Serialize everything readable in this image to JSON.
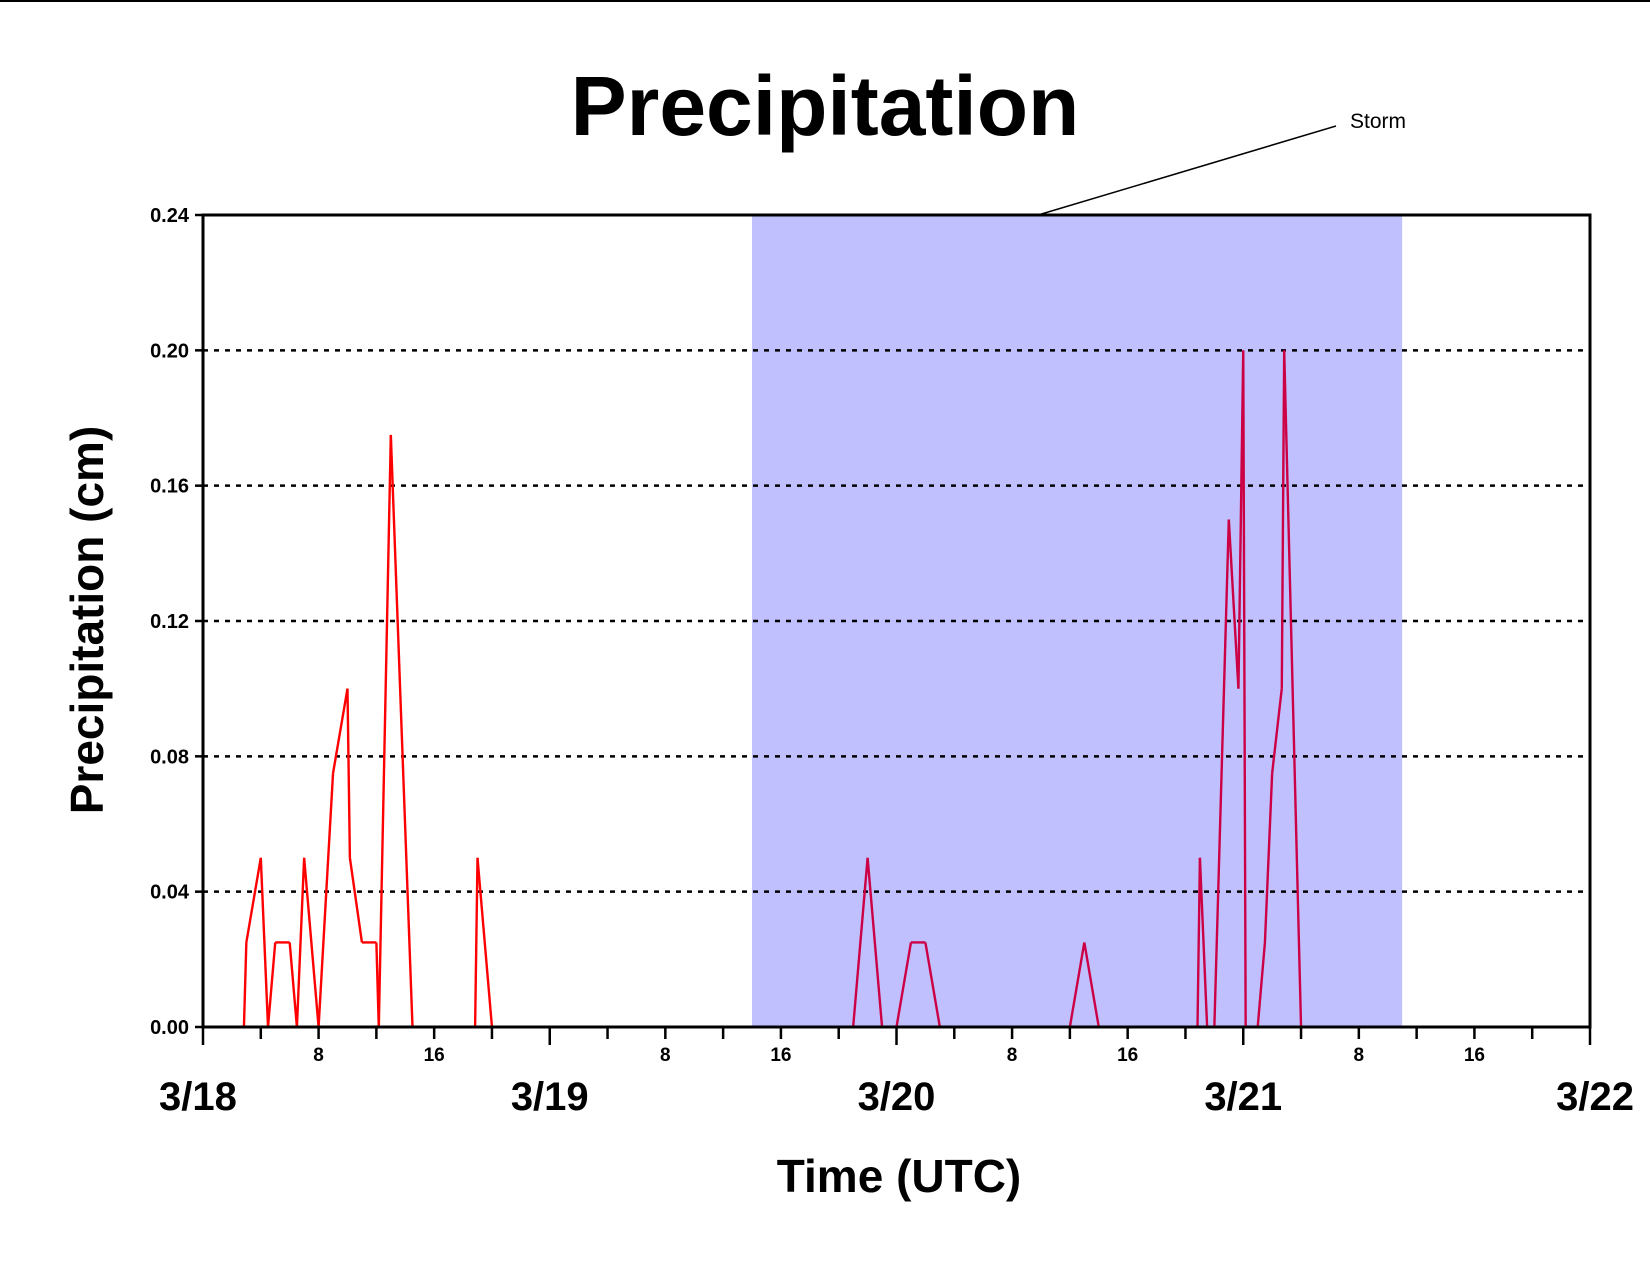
{
  "chart_data": {
    "type": "line",
    "title": "Precipitation",
    "xlabel": "Time (UTC)",
    "ylabel": "Precipitation (cm)",
    "ylim": [
      0,
      0.24
    ],
    "yticks": [
      "0.00",
      "0.04",
      "0.08",
      "0.12",
      "0.16",
      "0.20",
      "0.24"
    ],
    "xlim": [
      "3/18 00:00",
      "3/22 00:00"
    ],
    "day_labels": [
      "3/18",
      "3/19",
      "3/20",
      "3/21",
      "3/22"
    ],
    "hour_labels": [
      "8",
      "16"
    ],
    "grid": "horizontal dotted",
    "colors": {
      "series": "#ff0000",
      "series_in_storm": "#cc0044",
      "storm_band": "#c0c0ff",
      "grid": "#000000"
    },
    "annotation": {
      "text": "Storm",
      "span_start": "3/19 14:00",
      "span_end": "3/21 11:00"
    },
    "series": [
      {
        "points": [
          [
            "3/18 00:00",
            0
          ],
          [
            "3/18 02:50",
            0
          ],
          [
            "3/18 03:00",
            0.025
          ],
          [
            "3/18 04:00",
            0.05
          ],
          [
            "3/18 04:30",
            0
          ],
          [
            "3/18 05:00",
            0.025
          ],
          [
            "3/18 06:00",
            0.025
          ],
          [
            "3/18 06:30",
            0
          ],
          [
            "3/18 07:00",
            0.05
          ],
          [
            "3/18 08:00",
            0
          ],
          [
            "3/18 09:00",
            0.075
          ],
          [
            "3/18 10:00",
            0.1
          ],
          [
            "3/18 10:10",
            0.05
          ],
          [
            "3/18 11:00",
            0.025
          ],
          [
            "3/18 12:00",
            0.025
          ],
          [
            "3/18 12:10",
            0
          ],
          [
            "3/18 13:00",
            0.175
          ],
          [
            "3/18 14:30",
            0
          ],
          [
            "3/18 18:50",
            0
          ],
          [
            "3/18 19:00",
            0.05
          ],
          [
            "3/18 20:00",
            0
          ],
          [
            "3/19 21:00",
            0
          ],
          [
            "3/19 22:00",
            0.05
          ],
          [
            "3/19 23:00",
            0
          ],
          [
            "3/20 00:00",
            0
          ],
          [
            "3/20 01:00",
            0.025
          ],
          [
            "3/20 02:00",
            0.025
          ],
          [
            "3/20 03:00",
            0
          ],
          [
            "3/20 12:00",
            0
          ],
          [
            "3/20 13:00",
            0.025
          ],
          [
            "3/20 14:00",
            0
          ],
          [
            "3/20 20:50",
            0
          ],
          [
            "3/20 21:00",
            0.05
          ],
          [
            "3/20 21:30",
            0
          ],
          [
            "3/20 22:00",
            0
          ],
          [
            "3/20 23:00",
            0.15
          ],
          [
            "3/20 23:40",
            0.1
          ],
          [
            "3/21 00:00",
            0.2
          ],
          [
            "3/21 00:10",
            0
          ],
          [
            "3/21 01:00",
            0
          ],
          [
            "3/21 01:30",
            0.025
          ],
          [
            "3/21 02:00",
            0.075
          ],
          [
            "3/21 02:40",
            0.1
          ],
          [
            "3/21 02:50",
            0.2
          ],
          [
            "3/21 04:00",
            0
          ],
          [
            "3/22 00:00",
            0
          ]
        ]
      }
    ]
  }
}
